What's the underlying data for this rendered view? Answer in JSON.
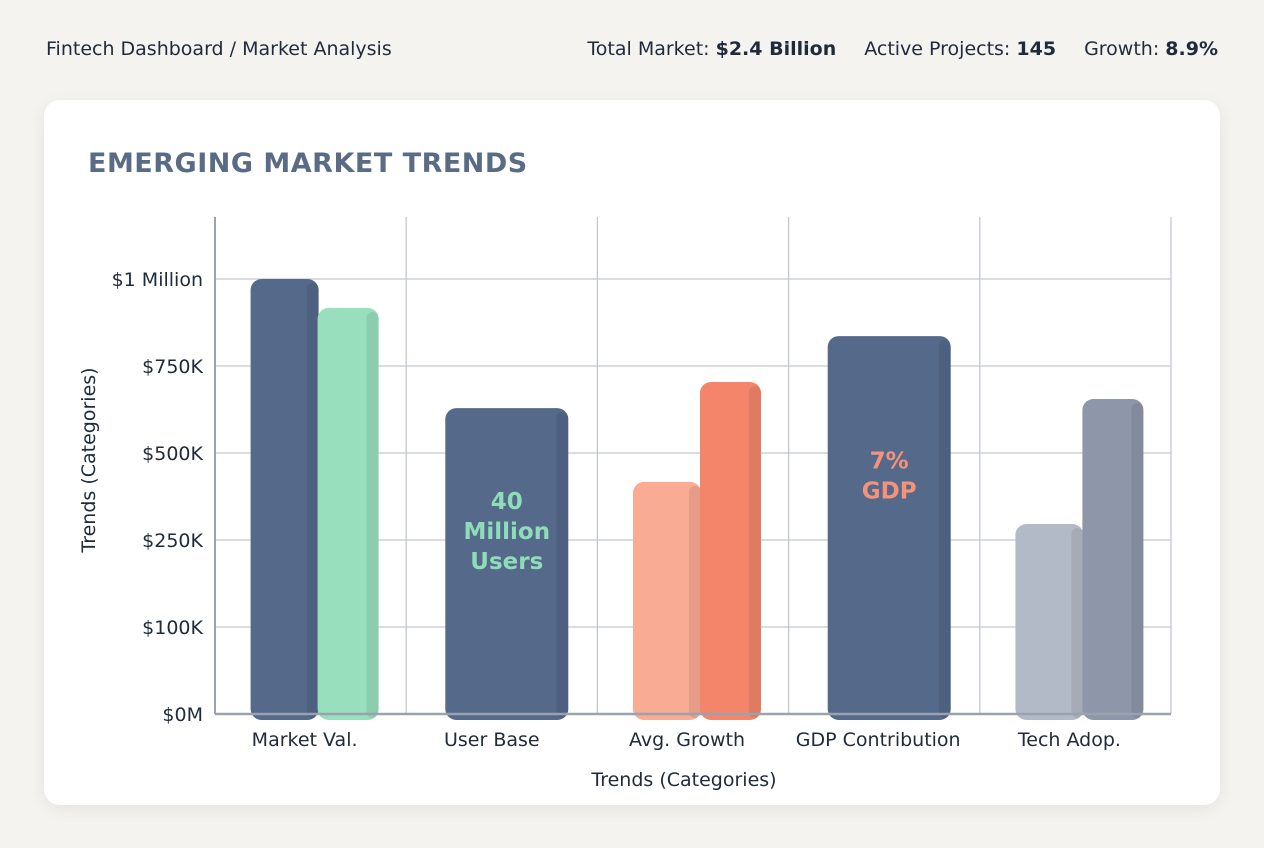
{
  "header": {
    "breadcrumb": "Fintech Dashboard / Market Analysis",
    "stats": [
      {
        "label": "Total Market:",
        "value": "$2.4 Billion"
      },
      {
        "label": "Active Projects:",
        "value": "145"
      },
      {
        "label": "Growth:",
        "value": "8.9%"
      }
    ]
  },
  "chart_data": {
    "type": "bar",
    "title": "EMERGING MARKET TRENDS",
    "xlabel": "Trends (Categories)",
    "ylabel": "Trends (Categories)",
    "yticks": [
      {
        "label": "$0M",
        "value": 0
      },
      {
        "label": "$100K",
        "value": 100000
      },
      {
        "label": "$250K",
        "value": 250000
      },
      {
        "label": "$500K",
        "value": 500000
      },
      {
        "label": "$750K",
        "value": 750000
      },
      {
        "label": "$1 Million",
        "value": 1000000
      }
    ],
    "grid": true,
    "categories": [
      "Market Val.",
      "User Base",
      "Avg. Growth",
      "GDP Contribution",
      "Tech Adop."
    ],
    "bars": [
      [
        {
          "value": 1000000,
          "color": "#55698a"
        },
        {
          "value": 917000,
          "color": "#97dfbd"
        }
      ],
      [
        {
          "value": 629000,
          "color": "#55698a",
          "label": "40 Million Users",
          "label_color": "#8fdcb8"
        }
      ],
      [
        {
          "value": 417000,
          "color": "#f9ab94"
        },
        {
          "value": 704000,
          "color": "#f4856b"
        }
      ],
      [
        {
          "value": 836000,
          "color": "#55698a",
          "label": "7% GDP",
          "label_color": "#f4937a"
        }
      ],
      [
        {
          "value": 296000,
          "color": "#b3bac7"
        },
        {
          "value": 655000,
          "color": "#8d97a9"
        }
      ]
    ]
  }
}
